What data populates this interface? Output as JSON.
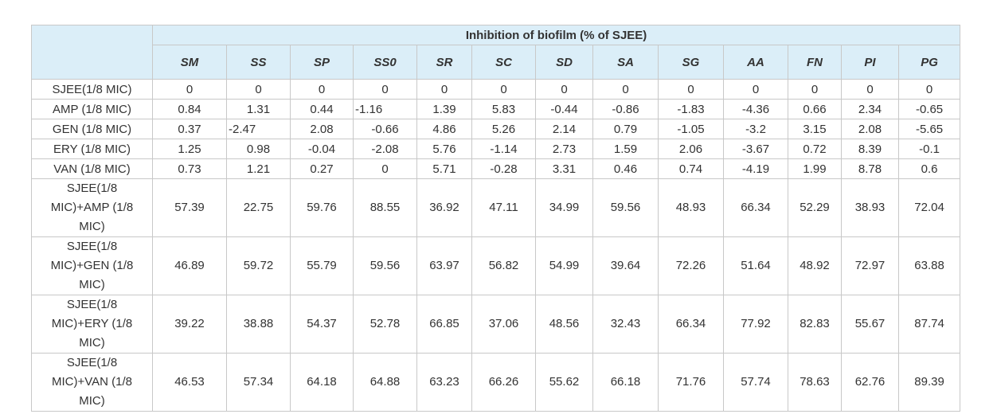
{
  "table": {
    "title": "Inhibition of biofilm (% of SJEE)",
    "columns": [
      "SM",
      "SS",
      "SP",
      "SS0",
      "SR",
      "SC",
      "SD",
      "SA",
      "SG",
      "AA",
      "FN",
      "PI",
      "PG"
    ],
    "rows": [
      {
        "label": "SJEE(1/8 MIC)",
        "values": [
          "0",
          "0",
          "0",
          "0",
          "0",
          "0",
          "0",
          "0",
          "0",
          "0",
          "0",
          "0",
          "0"
        ]
      },
      {
        "label": "AMP (1/8 MIC)",
        "values": [
          "0.84",
          "1.31",
          "0.44",
          "-1.16",
          "1.39",
          "5.83",
          "-0.44",
          "-0.86",
          "-1.83",
          "-4.36",
          "0.66",
          "2.34",
          "-0.65"
        ]
      },
      {
        "label": "GEN (1/8 MIC)",
        "values": [
          "0.37",
          "-2.47",
          "2.08",
          "-0.66",
          "4.86",
          "5.26",
          "2.14",
          "0.79",
          "-1.05",
          "-3.2",
          "3.15",
          "2.08",
          "-5.65"
        ]
      },
      {
        "label": "ERY (1/8 MIC)",
        "values": [
          "1.25",
          "0.98",
          "-0.04",
          "-2.08",
          "5.76",
          "-1.14",
          "2.73",
          "1.59",
          "2.06",
          "-3.67",
          "0.72",
          "8.39",
          "-0.1"
        ]
      },
      {
        "label": "VAN (1/8 MIC)",
        "values": [
          "0.73",
          "1.21",
          "0.27",
          "0",
          "5.71",
          "-0.28",
          "3.31",
          "0.46",
          "0.74",
          "-4.19",
          "1.99",
          "8.78",
          "0.6"
        ]
      },
      {
        "label": [
          "SJEE(1/8",
          "MIC)+AMP (1/8",
          "MIC)"
        ],
        "values": [
          "57.39",
          "22.75",
          "59.76",
          "88.55",
          "36.92",
          "47.11",
          "34.99",
          "59.56",
          "48.93",
          "66.34",
          "52.29",
          "38.93",
          "72.04"
        ]
      },
      {
        "label": [
          "SJEE(1/8",
          "MIC)+GEN (1/8",
          "MIC)"
        ],
        "values": [
          "46.89",
          "59.72",
          "55.79",
          "59.56",
          "63.97",
          "56.82",
          "54.99",
          "39.64",
          "72.26",
          "51.64",
          "48.92",
          "72.97",
          "63.88"
        ]
      },
      {
        "label": [
          "SJEE(1/8",
          "MIC)+ERY (1/8",
          "MIC)"
        ],
        "values": [
          "39.22",
          "38.88",
          "54.37",
          "52.78",
          "66.85",
          "37.06",
          "48.56",
          "32.43",
          "66.34",
          "77.92",
          "82.83",
          "55.67",
          "87.74"
        ]
      },
      {
        "label": [
          "SJEE(1/8",
          "MIC)+VAN (1/8",
          "MIC)"
        ],
        "values": [
          "46.53",
          "57.34",
          "64.18",
          "64.88",
          "63.23",
          "66.26",
          "55.62",
          "66.18",
          "71.76",
          "57.74",
          "78.63",
          "62.76",
          "89.39"
        ]
      }
    ]
  }
}
